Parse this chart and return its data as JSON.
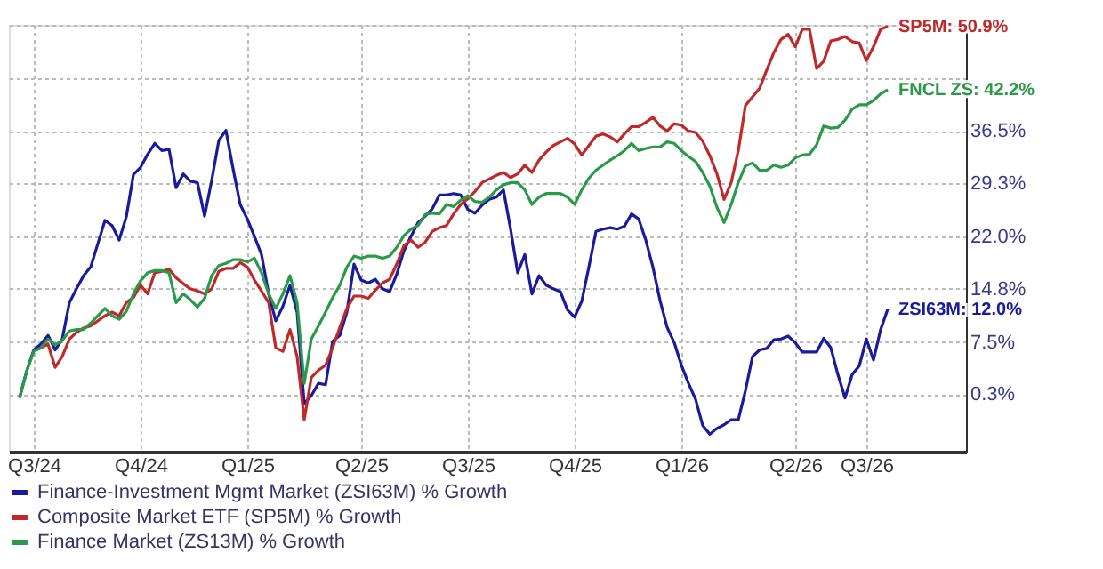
{
  "chart_data": {
    "type": "line",
    "categories": [
      null,
      null,
      "Q3/24",
      null,
      null,
      null,
      null,
      null,
      null,
      null,
      null,
      null,
      null,
      null,
      null,
      null,
      null,
      "Q4/24",
      null,
      null,
      null,
      null,
      null,
      null,
      null,
      null,
      null,
      null,
      null,
      null,
      null,
      null,
      "Q1/25",
      null,
      null,
      null,
      null,
      null,
      null,
      null,
      null,
      null,
      null,
      null,
      null,
      null,
      null,
      null,
      "Q2/25",
      null,
      null,
      null,
      null,
      null,
      null,
      null,
      null,
      null,
      null,
      null,
      null,
      null,
      null,
      "Q3/25",
      null,
      null,
      null,
      null,
      null,
      null,
      null,
      null,
      null,
      null,
      null,
      null,
      null,
      null,
      "Q4/25",
      null,
      null,
      null,
      null,
      null,
      null,
      null,
      null,
      null,
      null,
      null,
      null,
      null,
      null,
      "Q1/26",
      null,
      null,
      null,
      null,
      null,
      null,
      null,
      null,
      null,
      null,
      null,
      null,
      null,
      null,
      null,
      "Q2/26",
      null,
      null,
      null,
      null,
      null,
      null,
      null,
      null,
      null,
      "Q3/26",
      null,
      null,
      null
    ],
    "series": [
      {
        "name": "Finance-Investment Mgmt Market (ZSI63M) % Growth",
        "color": "#1a1a9c",
        "values": [
          -0.2,
          3.5,
          6.4,
          7.2,
          8.4,
          6.4,
          7.9,
          12.9,
          14.8,
          16.6,
          17.8,
          21.0,
          24.2,
          23.5,
          21.5,
          24.7,
          30.5,
          31.5,
          33.3,
          34.8,
          33.8,
          34.0,
          28.7,
          30.6,
          29.6,
          29.4,
          24.8,
          29.7,
          35.2,
          36.6,
          31.3,
          26.4,
          24.4,
          22.0,
          19.5,
          14.1,
          10.4,
          12.4,
          15.3,
          11.6,
          -1.0,
          0.1,
          1.8,
          1.6,
          7.6,
          8.4,
          11.6,
          18.2,
          16.0,
          15.6,
          16.1,
          14.8,
          14.4,
          16.8,
          20.0,
          22.0,
          23.9,
          24.8,
          25.8,
          27.7,
          27.7,
          27.9,
          27.7,
          25.7,
          25.2,
          26.3,
          27.1,
          27.4,
          28.4,
          23.0,
          17.0,
          19.5,
          14.1,
          16.6,
          15.3,
          14.8,
          14.4,
          11.9,
          10.9,
          13.1,
          17.8,
          22.7,
          23.0,
          23.2,
          23.0,
          23.4,
          25.1,
          24.4,
          21.5,
          17.8,
          13.2,
          9.5,
          7.4,
          4.3,
          1.8,
          -0.4,
          -4.0,
          -5.2,
          -4.4,
          -3.9,
          -3.2,
          -3.2,
          0.8,
          5.5,
          6.4,
          6.6,
          7.8,
          7.9,
          8.3,
          7.4,
          6.1,
          6.1,
          6.1,
          8.0,
          6.7,
          3.0,
          -0.2,
          3.0,
          4.2,
          7.9,
          5.0,
          9.2,
          12.0
        ]
      },
      {
        "name": "Composite Market ETF (SP5M) % Growth",
        "color": "#c0282a",
        "values": [
          null,
          null,
          6.2,
          6.7,
          7.2,
          4.0,
          5.5,
          7.9,
          8.8,
          9.4,
          9.7,
          10.4,
          11.1,
          11.6,
          11.1,
          12.9,
          13.6,
          15.3,
          14.1,
          17.0,
          17.2,
          17.5,
          16.3,
          15.5,
          14.8,
          14.5,
          14.1,
          14.8,
          17.2,
          17.6,
          17.6,
          18.4,
          17.8,
          16.0,
          14.5,
          12.9,
          6.7,
          6.2,
          9.2,
          5.5,
          -3.2,
          2.6,
          3.6,
          4.3,
          6.7,
          9.5,
          12.1,
          13.8,
          13.8,
          13.5,
          14.6,
          15.6,
          16.1,
          18.2,
          20.7,
          21.5,
          20.5,
          21.2,
          22.7,
          23.2,
          23.5,
          25.1,
          26.4,
          27.2,
          28.2,
          29.4,
          29.9,
          30.4,
          30.8,
          30.1,
          30.6,
          31.8,
          30.8,
          32.5,
          33.6,
          34.5,
          35.0,
          35.5,
          34.7,
          33.2,
          34.5,
          35.8,
          36.1,
          35.7,
          35.0,
          36.1,
          37.1,
          37.1,
          37.7,
          38.4,
          37.2,
          36.5,
          37.5,
          37.3,
          36.5,
          36.3,
          35.1,
          33.1,
          30.6,
          27.1,
          29.4,
          33.8,
          40.0,
          41.2,
          42.4,
          44.9,
          47.3,
          49.1,
          49.8,
          48.1,
          50.5,
          50.5,
          45.1,
          46.1,
          48.9,
          49.1,
          49.5,
          48.8,
          48.6,
          46.2,
          48.1,
          50.5,
          50.9
        ]
      },
      {
        "name": "Finance Market (ZS13M) % Growth",
        "color": "#2a9a4a",
        "values": [
          -0.2,
          3.5,
          6.2,
          6.7,
          7.9,
          7.1,
          7.7,
          9.0,
          9.2,
          9.2,
          10.1,
          11.1,
          12.1,
          11.1,
          10.6,
          11.7,
          14.1,
          15.9,
          17.0,
          17.3,
          17.3,
          17.0,
          12.9,
          14.1,
          13.3,
          12.3,
          13.5,
          16.6,
          18.0,
          18.3,
          18.8,
          18.8,
          18.5,
          19.0,
          17.0,
          14.1,
          12.1,
          14.1,
          16.6,
          12.9,
          1.8,
          7.9,
          9.7,
          11.6,
          13.6,
          15.3,
          17.8,
          19.3,
          19.0,
          19.3,
          19.3,
          19.0,
          19.3,
          20.5,
          22.1,
          23.0,
          23.5,
          25.0,
          25.2,
          25.1,
          26.4,
          26.1,
          27.0,
          27.6,
          26.8,
          26.7,
          27.4,
          28.4,
          29.1,
          29.4,
          29.4,
          28.4,
          26.4,
          27.4,
          27.9,
          27.9,
          27.9,
          27.4,
          26.4,
          28.4,
          30.0,
          31.1,
          31.8,
          32.5,
          33.1,
          33.8,
          34.8,
          33.8,
          34.1,
          34.3,
          34.3,
          35.0,
          34.8,
          33.8,
          33.0,
          32.3,
          30.8,
          28.9,
          26.0,
          23.9,
          26.4,
          29.4,
          31.7,
          32.1,
          31.1,
          31.1,
          31.8,
          31.5,
          31.8,
          32.8,
          33.2,
          33.3,
          34.6,
          37.2,
          36.9,
          37.0,
          38.0,
          39.5,
          40.1,
          40.1,
          40.7,
          41.6,
          42.2
        ]
      }
    ],
    "ylim": [
      -7.6,
      51.1
    ],
    "yticks": [
      {
        "value": 0.3,
        "label": "0.3%"
      },
      {
        "value": 7.5,
        "label": "7.5%"
      },
      {
        "value": 14.8,
        "label": "14.8%"
      },
      {
        "value": 22.0,
        "label": "22.0%"
      },
      {
        "value": 29.3,
        "label": "29.3%"
      },
      {
        "value": 36.5,
        "label": "36.5%"
      },
      {
        "value": 43.8,
        "label": null
      },
      {
        "value": 51.0,
        "label": null
      }
    ],
    "annotations": [
      "ZSI63M: 12.0%",
      "SP5M: 50.9%",
      "FNCL ZS: 42.2%"
    ],
    "grid": true,
    "legend": "bottom",
    "marker": "none",
    "line_style": "solid"
  }
}
